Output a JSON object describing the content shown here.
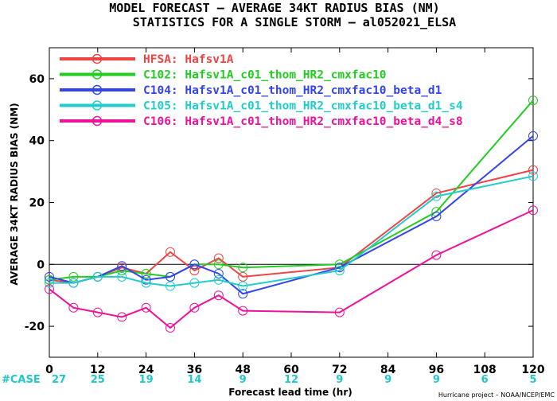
{
  "title_line1": "MODEL FORECAST – AVERAGE 34KT RADIUS BIAS (NM)",
  "title_line2": "STATISTICS FOR A SINGLE STORM – al052021_ELSA",
  "case_label": "#CASE",
  "case_counts": [
    "27",
    "25",
    "19",
    "14",
    "9",
    "12",
    "9",
    "9",
    "9",
    "6",
    "5"
  ],
  "credit": "Hurricane project – NOAA/NCEP/EMC",
  "chart_data": {
    "type": "line",
    "title": "MODEL FORECAST – AVERAGE 34KT RADIUS BIAS (NM)",
    "subtitle": "STATISTICS FOR A SINGLE STORM – al052021_ELSA",
    "xlabel": "Forecast lead time (hr)",
    "ylabel": "AVERAGE 34KT RADIUS BIAS (NM)",
    "xlim": [
      0,
      120
    ],
    "ylim": [
      -30,
      70
    ],
    "x_ticks": [
      0,
      12,
      24,
      36,
      48,
      60,
      72,
      84,
      96,
      108,
      120
    ],
    "y_ticks": [
      -20,
      0,
      20,
      40,
      60
    ],
    "grid": false,
    "legend_position": "top-left",
    "series": [
      {
        "name": "HFSA: Hafsv1A",
        "color": "#ee4444",
        "x": [
          0,
          6,
          12,
          18,
          24,
          30,
          36,
          42,
          48,
          72,
          96,
          120
        ],
        "y": [
          -5,
          -6,
          -4,
          -1,
          -3,
          4,
          -2,
          2,
          -4,
          -1,
          23,
          30.5
        ]
      },
      {
        "name": "C102: Hafsv1A_c01_thom_HR2_cmxfac10",
        "color": "#22cc22",
        "x": [
          0,
          6,
          12,
          18,
          24,
          30,
          36,
          42,
          48,
          72,
          96,
          120
        ],
        "y": [
          -5,
          -4,
          -4,
          -2,
          -3,
          -4,
          0,
          0,
          -1,
          0,
          17,
          53
        ]
      },
      {
        "name": "C104: Hafsv1A_c01_thom_HR2_cmxfac10_beta_d1",
        "color": "#3344ee",
        "x": [
          0,
          6,
          12,
          18,
          24,
          30,
          36,
          42,
          48,
          72,
          96,
          120
        ],
        "y": [
          -4,
          -6,
          -4,
          -0.5,
          -5,
          -4,
          0,
          -3,
          -9.5,
          -1,
          15.5,
          41.5
        ]
      },
      {
        "name": "C105: Hafsv1A_c01_thom_HR2_cmxfac10_beta_d1_s4",
        "color": "#22cccc",
        "x": [
          0,
          6,
          12,
          18,
          24,
          30,
          36,
          42,
          48,
          72,
          96,
          120
        ],
        "y": [
          -6,
          -6,
          -4,
          -4,
          -6,
          -7,
          -6,
          -5,
          -7,
          -2,
          22,
          28.5
        ]
      },
      {
        "name": "C106: Hafsv1A_c01_thom_HR2_cmxfac10_beta_d4_s8",
        "color": "#ee1199",
        "x": [
          0,
          6,
          12,
          18,
          24,
          30,
          36,
          42,
          48,
          72,
          96,
          120
        ],
        "y": [
          -8,
          -14,
          -15.5,
          -17,
          -14,
          -20.5,
          -14,
          -10,
          -15,
          -15.5,
          3,
          17.5
        ]
      }
    ]
  }
}
